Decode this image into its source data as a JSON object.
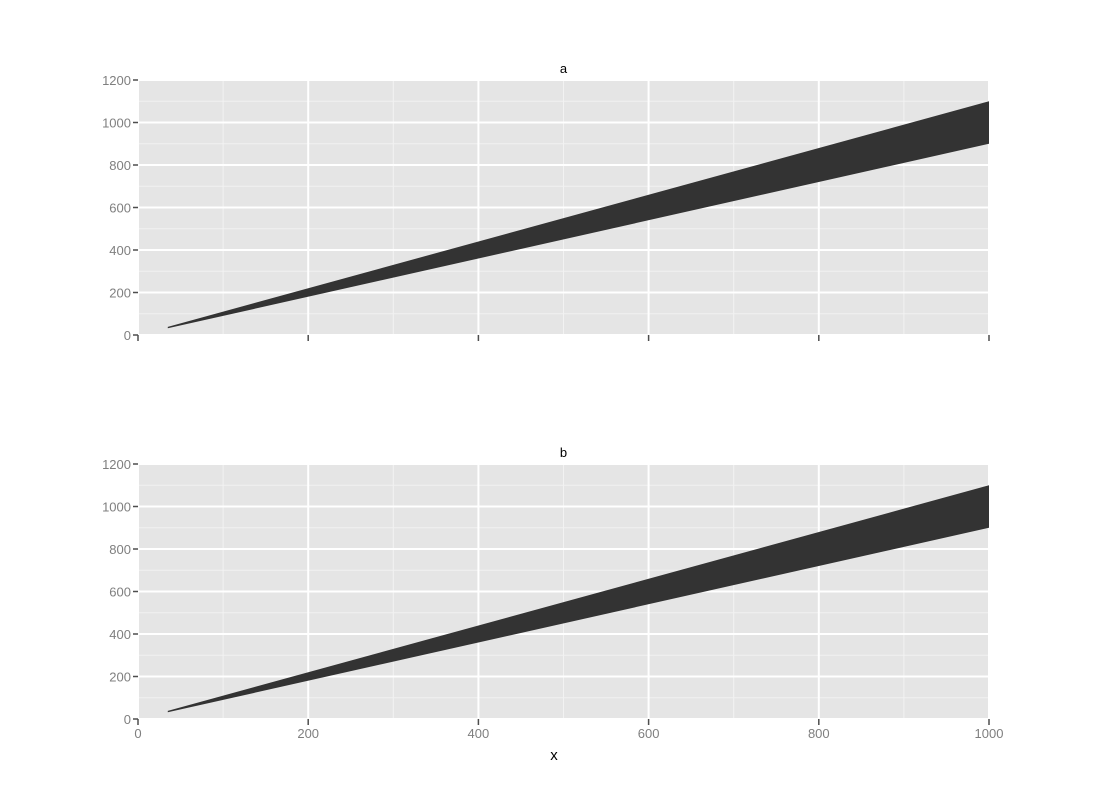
{
  "chart_data": {
    "type": "area",
    "xlabel": "x",
    "ylabel": "",
    "xlim": [
      0,
      1000
    ],
    "ylim": [
      0,
      1200
    ],
    "x_ticks": [
      0,
      200,
      400,
      600,
      800,
      1000
    ],
    "y_ticks": [
      0,
      200,
      400,
      600,
      800,
      1000,
      1200
    ],
    "grid": true,
    "facets": [
      {
        "label": "a",
        "x": [
          35,
          1000
        ],
        "ymin": [
          31.5,
          900
        ],
        "ymax": [
          38.5,
          1100
        ]
      },
      {
        "label": "b",
        "x": [
          35,
          1000
        ],
        "ymin": [
          31.5,
          900
        ],
        "ymax": [
          38.5,
          1100
        ]
      }
    ]
  }
}
